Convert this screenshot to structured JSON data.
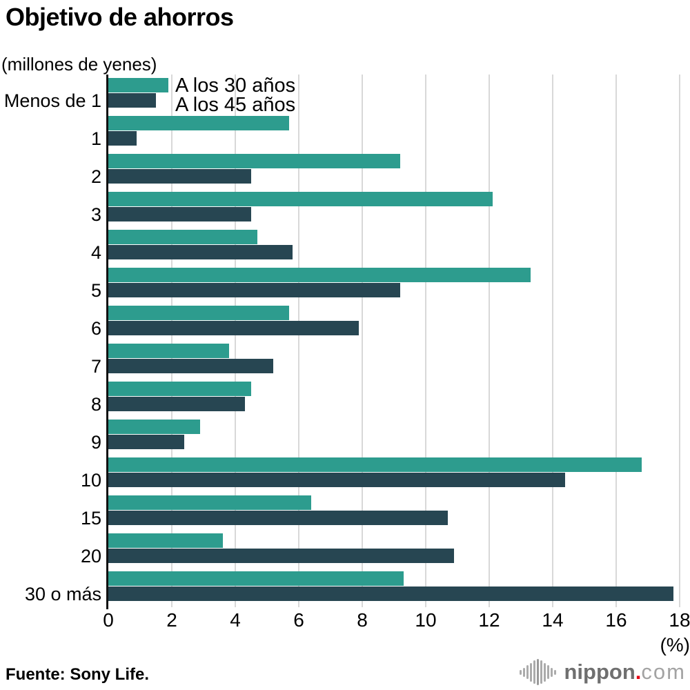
{
  "title": "Objetivo de ahorros",
  "unit_note": "(millones de yenes)",
  "source": "Fuente: Sony Life.",
  "logo": {
    "icon": "soundwave-icon",
    "name": "nippon",
    "dot": ".",
    "tld": "com",
    "name_color": "#6f6f6f",
    "dot_color": "#e60012",
    "tld_color": "#a3a3a3"
  },
  "chart_data": {
    "type": "bar",
    "orientation": "horizontal",
    "title": "Objetivo de ahorros",
    "subtitle": "(millones de yenes)",
    "xlabel": "(%)",
    "xlim": [
      0,
      18
    ],
    "xticks": [
      0,
      2,
      4,
      6,
      8,
      10,
      12,
      14,
      16,
      18
    ],
    "grid": true,
    "gridline_color": "#d8d8d8",
    "legend_position": "top-inside",
    "categories": [
      "Menos de 1",
      "1",
      "2",
      "3",
      "4",
      "5",
      "6",
      "7",
      "8",
      "9",
      "10",
      "15",
      "20",
      "30 o más"
    ],
    "series": [
      {
        "name": "A los 30 años",
        "color": "#2d9c8e",
        "values": [
          1.9,
          5.7,
          9.2,
          12.1,
          4.7,
          13.3,
          5.7,
          3.8,
          4.5,
          2.9,
          16.8,
          6.4,
          3.6,
          9.3
        ]
      },
      {
        "name": "A los 45 años",
        "color": "#274652",
        "values": [
          1.5,
          0.9,
          4.5,
          4.5,
          5.8,
          9.2,
          7.9,
          5.2,
          4.3,
          2.4,
          14.4,
          10.7,
          10.9,
          17.8
        ]
      }
    ]
  }
}
